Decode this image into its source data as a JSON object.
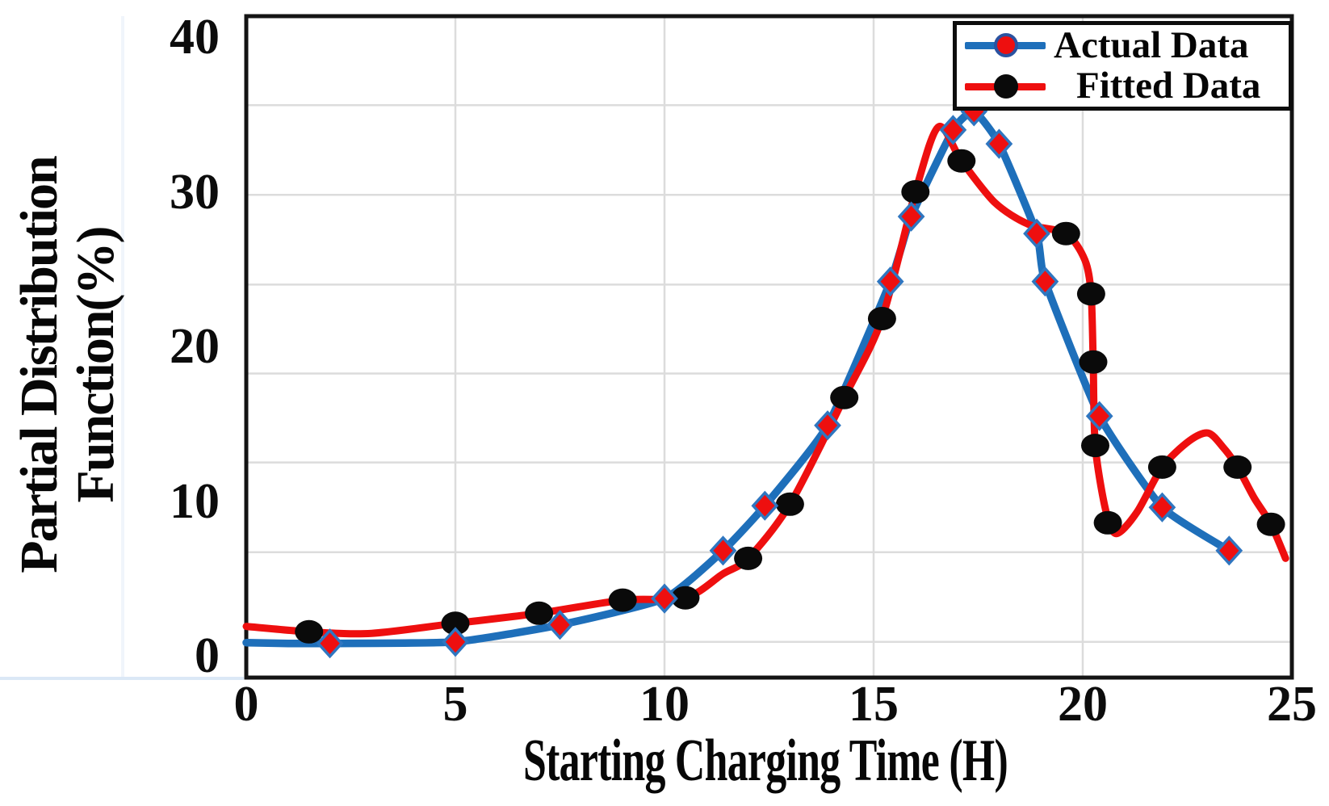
{
  "chart_data": {
    "type": "line",
    "title": "",
    "xlabel": "Starting Charging Time (H)",
    "ylabel_line1": "Partial Distribution",
    "ylabel_line2": "Function(%)",
    "x_ticks": [
      0,
      5,
      10,
      15,
      20,
      25
    ],
    "y_ticks": [
      0,
      10,
      20,
      30,
      40
    ],
    "xlim": [
      0,
      25
    ],
    "ylim": [
      -1.4,
      41.4
    ],
    "x_gridlines": [
      5,
      10,
      15,
      20
    ],
    "y_gridlines": [
      35.6,
      29.8,
      24.0,
      18.25,
      12.5,
      6.7,
      0.9
    ],
    "grid_on": true,
    "legend_position": "top-right",
    "series": [
      {
        "name": "Actual Data",
        "line_color": "#1e6fba",
        "marker": "diamond",
        "marker_fill": "#ee0f0f",
        "marker_edge": "#2f76c0",
        "points": [
          [
            2,
            0.8
          ],
          [
            5,
            0.9
          ],
          [
            7.5,
            2.0
          ],
          [
            10,
            3.7
          ],
          [
            11.4,
            6.8
          ],
          [
            12.4,
            9.7
          ],
          [
            13.9,
            14.9
          ],
          [
            15.4,
            24.2
          ],
          [
            15.9,
            28.4
          ],
          [
            16.9,
            34.0
          ],
          [
            17.4,
            35.2
          ],
          [
            18.0,
            33.1
          ],
          [
            18.9,
            27.3
          ],
          [
            19.1,
            24.2
          ],
          [
            20.4,
            15.5
          ],
          [
            21.9,
            9.6
          ],
          [
            23.5,
            6.8
          ]
        ],
        "curve": [
          [
            0,
            0.85
          ],
          [
            1,
            0.8
          ],
          [
            2,
            0.8
          ],
          [
            5,
            0.9
          ],
          [
            7.5,
            2.0
          ],
          [
            10,
            3.7
          ],
          [
            11.4,
            6.8
          ],
          [
            12.4,
            9.7
          ],
          [
            13.9,
            14.9
          ],
          [
            15.4,
            24.2
          ],
          [
            15.9,
            28.4
          ],
          [
            16.9,
            34.0
          ],
          [
            17.4,
            35.2
          ],
          [
            18.0,
            33.1
          ],
          [
            18.9,
            27.3
          ],
          [
            19.1,
            24.2
          ],
          [
            20.4,
            15.5
          ],
          [
            21.9,
            9.6
          ],
          [
            23.5,
            6.8
          ]
        ]
      },
      {
        "name": "Fitted Data",
        "line_color": "#ee0f0f",
        "marker": "circle",
        "marker_fill": "#0a0a0a",
        "marker_edge": "#0a0a0a",
        "points": [
          [
            1.5,
            1.55
          ],
          [
            5,
            2.1
          ],
          [
            7,
            2.75
          ],
          [
            9,
            3.6
          ],
          [
            10.5,
            3.75
          ],
          [
            12,
            6.3
          ],
          [
            13,
            9.8
          ],
          [
            14.3,
            16.7
          ],
          [
            15.2,
            21.8
          ],
          [
            16,
            30
          ],
          [
            17.1,
            32
          ],
          [
            19.6,
            27.3
          ],
          [
            20.2,
            23.4
          ],
          [
            20.25,
            19
          ],
          [
            20.3,
            13.6
          ],
          [
            20.6,
            8.6
          ],
          [
            21.9,
            12.2
          ],
          [
            23.7,
            12.2
          ],
          [
            24.5,
            8.5
          ]
        ],
        "curve": [
          [
            0,
            1.9
          ],
          [
            1.5,
            1.55
          ],
          [
            3,
            1.45
          ],
          [
            5,
            2.1
          ],
          [
            7,
            2.75
          ],
          [
            9,
            3.6
          ],
          [
            10.5,
            3.75
          ],
          [
            11.4,
            5.3
          ],
          [
            12,
            6.3
          ],
          [
            13,
            9.8
          ],
          [
            14.3,
            16.7
          ],
          [
            15.2,
            21.8
          ],
          [
            16,
            30
          ],
          [
            16.55,
            34.2
          ],
          [
            17.1,
            32
          ],
          [
            17.9,
            29.3
          ],
          [
            18.7,
            27.9
          ],
          [
            19.6,
            27.3
          ],
          [
            20.05,
            25.6
          ],
          [
            20.2,
            23.4
          ],
          [
            20.25,
            19
          ],
          [
            20.3,
            13.6
          ],
          [
            20.55,
            9.4
          ],
          [
            20.8,
            7.9
          ],
          [
            21.3,
            9.3
          ],
          [
            21.9,
            12.2
          ],
          [
            22.55,
            13.9
          ],
          [
            23.0,
            14.4
          ],
          [
            23.35,
            13.5
          ],
          [
            23.7,
            12.2
          ],
          [
            24.1,
            10.2
          ],
          [
            24.5,
            8.5
          ],
          [
            24.85,
            6.3
          ]
        ]
      }
    ],
    "style_colors": {
      "gridline": "#dcdcdc",
      "plot_border": "#141414",
      "background": "#ffffff"
    }
  }
}
